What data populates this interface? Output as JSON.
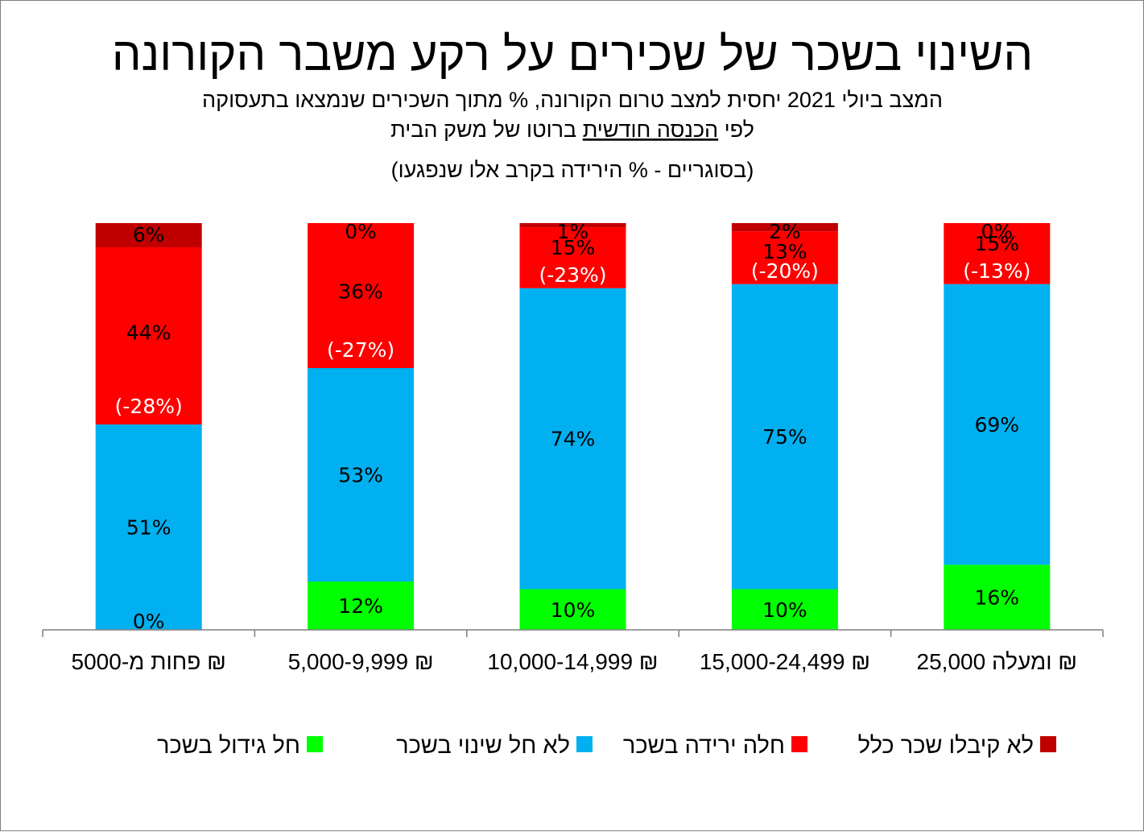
{
  "title": "השינוי בשכר של שכירים על רקע משבר הקורונה",
  "subtitle_line1": "המצב ביולי 2021 יחסית למצב טרום הקורונה, % מתוך השכירים שנמצאו בתעסוקה",
  "subtitle_line2_prefix": "לפי ",
  "subtitle_line2_underlined": "הכנסה חודשית",
  "subtitle_line2_suffix": " ברוטו של משק הבית",
  "note": "(בסוגריים - % הירידה בקרב אלו שנפגעו)",
  "colors": {
    "increase": "#00ff00",
    "no_change": "#00b0f0",
    "decrease": "#ff0000",
    "no_pay": "#c00000",
    "axis": "#7f7f7f"
  },
  "chart_data": {
    "type": "bar",
    "stacked": true,
    "normalized": "100%",
    "categories": [
      "פחות מ-5000 ₪",
      "5,000-9,999 ₪",
      "10,000-14,999 ₪",
      "15,000-24,499 ₪",
      "25,000 ומעלה ₪"
    ],
    "series": [
      {
        "name": "חל גידול בשכר",
        "key": "increase",
        "values": [
          0,
          12,
          10,
          10,
          16
        ],
        "labels": [
          "0%",
          "12%",
          "10%",
          "10%",
          "16%"
        ]
      },
      {
        "name": "לא חל שינוי בשכר",
        "key": "no_change",
        "values": [
          51,
          53,
          74,
          75,
          69
        ],
        "labels": [
          "51%",
          "53%",
          "74%",
          "75%",
          "69%"
        ]
      },
      {
        "name": "חלה ירידה בשכר",
        "key": "decrease",
        "values": [
          44,
          36,
          15,
          13,
          15
        ],
        "labels": [
          "44%",
          "36%",
          "15%",
          "13%",
          "15%"
        ]
      },
      {
        "name": "לא קיבלו שכר כלל",
        "key": "no_pay",
        "values": [
          6,
          0,
          1,
          2,
          0
        ],
        "labels": [
          "6%",
          "0%",
          "1%",
          "2%",
          "0%"
        ]
      }
    ],
    "decline_among_affected": [
      "(-28%)",
      "(-27%)",
      "(-23%)",
      "(-20%)",
      "(-13%)"
    ],
    "legend_position": "bottom",
    "legend_order": [
      "no_pay",
      "decrease",
      "no_change",
      "increase"
    ],
    "grid": false
  }
}
